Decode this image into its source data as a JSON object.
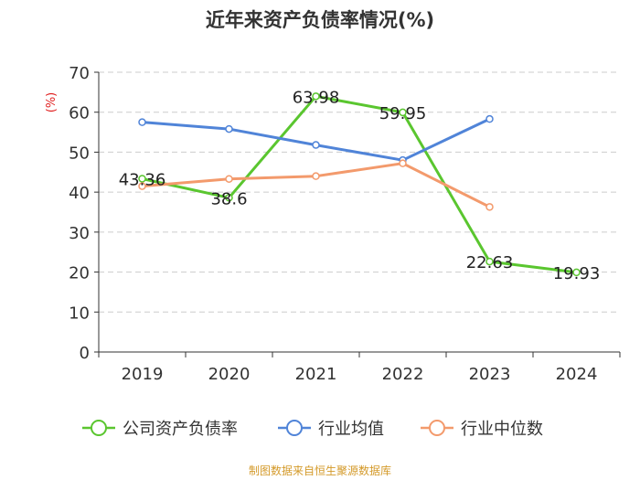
{
  "chart_data": {
    "type": "line",
    "title": "近年来资产负债率情况(%)",
    "ylabel": "(%)",
    "xlabel": "",
    "categories": [
      "2019",
      "2020",
      "2021",
      "2022",
      "2023",
      "2024"
    ],
    "ylim": [
      0,
      70
    ],
    "yticks": [
      "0",
      "10",
      "20",
      "30",
      "40",
      "50",
      "60",
      "70"
    ],
    "grid": true,
    "legend_position": "bottom",
    "series": [
      {
        "name": "公司资产负债率",
        "color": "#5ac62f",
        "values": [
          43.36,
          38.6,
          63.98,
          59.95,
          22.63,
          19.93
        ],
        "labels": [
          "43.36",
          "38.6",
          "63.98",
          "59.95",
          "22.63",
          "19.93"
        ]
      },
      {
        "name": "行业均值",
        "color": "#5084d8",
        "values": [
          57.5,
          55.8,
          51.8,
          48.0,
          58.3,
          null
        ]
      },
      {
        "name": "行业中位数",
        "color": "#f39a6c",
        "values": [
          41.5,
          43.3,
          44.0,
          47.2,
          36.3,
          null
        ]
      }
    ]
  },
  "footer": {
    "text": "制图数据来自恒生聚源数据库",
    "color": "#d49a2a"
  },
  "colors": {
    "title": "#333333",
    "ylabel": "#e02020",
    "axis": "#333333",
    "grid": "#cccccc"
  }
}
